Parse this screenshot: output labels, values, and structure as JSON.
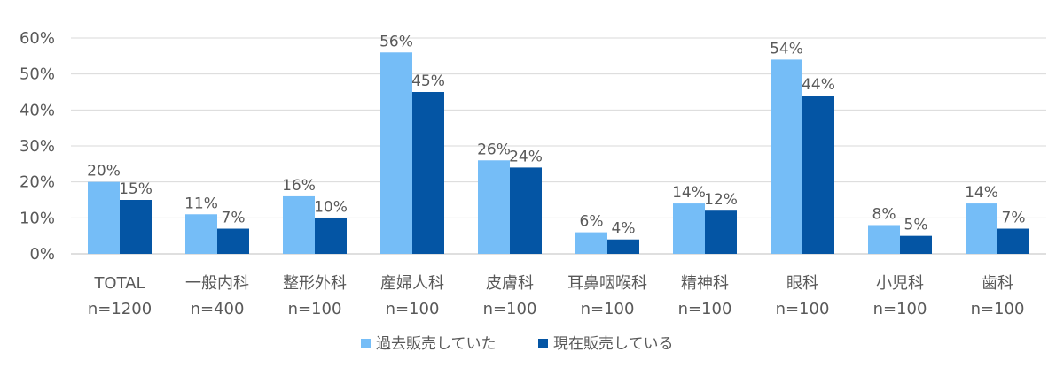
{
  "chart_data": {
    "type": "bar",
    "title": "",
    "xlabel": "",
    "ylabel": "",
    "ylim": [
      0,
      60
    ],
    "yticks": [
      0,
      10,
      20,
      30,
      40,
      50,
      60
    ],
    "ytick_labels": [
      "0%",
      "10%",
      "20%",
      "30%",
      "40%",
      "50%",
      "60%"
    ],
    "grid": true,
    "legend_position": "bottom",
    "categories": [
      {
        "name": "TOTAL",
        "n": "n=1200"
      },
      {
        "name": "一般内科",
        "n": "n=400"
      },
      {
        "name": "整形外科",
        "n": "n=100"
      },
      {
        "name": "産婦人科",
        "n": "n=100"
      },
      {
        "name": "皮膚科",
        "n": "n=100"
      },
      {
        "name": "耳鼻咽喉科",
        "n": "n=100"
      },
      {
        "name": "精神科",
        "n": "n=100"
      },
      {
        "name": "眼科",
        "n": "n=100"
      },
      {
        "name": "小児科",
        "n": "n=100"
      },
      {
        "name": "歯科",
        "n": "n=100"
      }
    ],
    "series": [
      {
        "name": "過去販売していた",
        "color": "#75BDF7",
        "values": [
          20,
          11,
          16,
          56,
          26,
          6,
          14,
          54,
          8,
          14
        ],
        "labels": [
          "20%",
          "11%",
          "16%",
          "56%",
          "26%",
          "6%",
          "14%",
          "54%",
          "8%",
          "14%"
        ]
      },
      {
        "name": "現在販売している",
        "color": "#0455A4",
        "values": [
          15,
          7,
          10,
          45,
          24,
          4,
          12,
          44,
          5,
          7
        ],
        "labels": [
          "15%",
          "7%",
          "10%",
          "45%",
          "24%",
          "4%",
          "12%",
          "44%",
          "5%",
          "7%"
        ]
      }
    ]
  }
}
